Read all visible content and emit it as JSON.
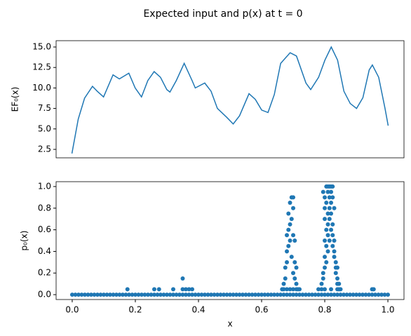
{
  "title": "Expected input and p(x) at t = 0",
  "chart_data": [
    {
      "type": "line",
      "ylabel": "EF₀(x)",
      "color": "#1f77b4",
      "x": [
        0,
        0.02,
        0.04,
        0.065,
        0.08,
        0.1,
        0.13,
        0.15,
        0.18,
        0.2,
        0.22,
        0.24,
        0.26,
        0.28,
        0.3,
        0.31,
        0.33,
        0.355,
        0.38,
        0.39,
        0.42,
        0.44,
        0.46,
        0.49,
        0.51,
        0.53,
        0.56,
        0.58,
        0.6,
        0.62,
        0.64,
        0.66,
        0.69,
        0.71,
        0.74,
        0.755,
        0.78,
        0.8,
        0.82,
        0.84,
        0.86,
        0.88,
        0.9,
        0.92,
        0.94,
        0.95,
        0.97,
        0.99,
        1.0
      ],
      "values": [
        2.0,
        6.2,
        8.75,
        10.2,
        9.6,
        8.9,
        11.6,
        11.1,
        11.8,
        10.0,
        8.9,
        10.9,
        12.0,
        11.3,
        9.8,
        9.5,
        10.9,
        13.0,
        10.9,
        10.0,
        10.6,
        9.6,
        7.5,
        6.4,
        5.6,
        6.6,
        9.3,
        8.6,
        7.3,
        7.0,
        9.2,
        13.0,
        14.3,
        13.9,
        10.6,
        9.8,
        11.3,
        13.4,
        15.0,
        13.4,
        9.6,
        8.1,
        7.5,
        8.8,
        12.2,
        12.8,
        11.3,
        7.5,
        5.4
      ],
      "xlim": [
        -0.05,
        1.05
      ],
      "ylim": [
        1.47,
        15.77
      ],
      "yticks": [
        2.5,
        {
          "value": 5,
          "label": "5.0"
        },
        7.5,
        {
          "value": 10,
          "label": "10.0"
        },
        12.5,
        {
          "value": 15,
          "label": "15.0"
        }
      ]
    },
    {
      "type": "scatter",
      "ylabel": "p₀(x)",
      "xlabel": "x",
      "color": "#1f77b4",
      "x": [
        0,
        0.01,
        0.02,
        0.03,
        0.04,
        0.05,
        0.06,
        0.07,
        0.08,
        0.09,
        0.1,
        0.11,
        0.12,
        0.13,
        0.14,
        0.15,
        0.16,
        0.17,
        0.18,
        0.19,
        0.2,
        0.21,
        0.22,
        0.23,
        0.24,
        0.25,
        0.26,
        0.27,
        0.28,
        0.29,
        0.3,
        0.31,
        0.32,
        0.33,
        0.34,
        0.35,
        0.36,
        0.37,
        0.38,
        0.39,
        0.4,
        0.41,
        0.42,
        0.43,
        0.44,
        0.45,
        0.46,
        0.47,
        0.48,
        0.49,
        0.5,
        0.51,
        0.52,
        0.53,
        0.54,
        0.55,
        0.56,
        0.57,
        0.58,
        0.59,
        0.6,
        0.61,
        0.62,
        0.63,
        0.64,
        0.65,
        0.66,
        0.67,
        0.68,
        0.69,
        0.7,
        0.71,
        0.72,
        0.73,
        0.74,
        0.75,
        0.76,
        0.77,
        0.78,
        0.79,
        0.8,
        0.81,
        0.82,
        0.83,
        0.84,
        0.85,
        0.86,
        0.87,
        0.88,
        0.89,
        0.9,
        0.91,
        0.92,
        0.93,
        0.94,
        0.95,
        0.96,
        0.97,
        0.98,
        0.99,
        1.0,
        0.175,
        0.26,
        0.275,
        0.32,
        0.35,
        0.35,
        0.36,
        0.37,
        0.38,
        0.665,
        0.67,
        0.67,
        0.675,
        0.675,
        0.68,
        0.68,
        0.68,
        0.68,
        0.685,
        0.685,
        0.685,
        0.69,
        0.69,
        0.69,
        0.69,
        0.695,
        0.695,
        0.695,
        0.7,
        0.7,
        0.7,
        0.7,
        0.7,
        0.705,
        0.705,
        0.705,
        0.71,
        0.71,
        0.71,
        0.715,
        0.72,
        0.78,
        0.79,
        0.79,
        0.795,
        0.795,
        0.795,
        0.8,
        0.8,
        0.8,
        0.8,
        0.8,
        0.8,
        0.8,
        0.805,
        0.805,
        0.805,
        0.805,
        0.805,
        0.81,
        0.81,
        0.81,
        0.81,
        0.81,
        0.81,
        0.815,
        0.815,
        0.815,
        0.815,
        0.815,
        0.82,
        0.82,
        0.82,
        0.82,
        0.82,
        0.82,
        0.825,
        0.825,
        0.825,
        0.825,
        0.825,
        0.83,
        0.83,
        0.83,
        0.83,
        0.835,
        0.835,
        0.835,
        0.84,
        0.84,
        0.84,
        0.84,
        0.845,
        0.845,
        0.85,
        0.95,
        0.955
      ],
      "values": [
        0,
        0,
        0,
        0,
        0,
        0,
        0,
        0,
        0,
        0,
        0,
        0,
        0,
        0,
        0,
        0,
        0,
        0,
        0,
        0,
        0,
        0,
        0,
        0,
        0,
        0,
        0,
        0,
        0,
        0,
        0,
        0,
        0,
        0,
        0,
        0,
        0,
        0,
        0,
        0,
        0,
        0,
        0,
        0,
        0,
        0,
        0,
        0,
        0,
        0,
        0,
        0,
        0,
        0,
        0,
        0,
        0,
        0,
        0,
        0,
        0,
        0,
        0,
        0,
        0,
        0,
        0,
        0,
        0,
        0,
        0,
        0,
        0,
        0,
        0,
        0,
        0,
        0,
        0,
        0,
        0,
        0,
        0,
        0,
        0,
        0,
        0,
        0,
        0,
        0,
        0,
        0,
        0,
        0,
        0,
        0,
        0,
        0,
        0,
        0,
        0,
        0.05,
        0.05,
        0.05,
        0.05,
        0.05,
        0.15,
        0.05,
        0.05,
        0.05,
        0.05,
        0.05,
        0.1,
        0.15,
        0.25,
        0.05,
        0.3,
        0.4,
        0.55,
        0.45,
        0.6,
        0.75,
        0.05,
        0.5,
        0.65,
        0.85,
        0.9,
        0.7,
        0.35,
        0.05,
        0.9,
        0.8,
        0.55,
        0.2,
        0.5,
        0.3,
        0.15,
        0.05,
        0.25,
        0.1,
        0.05,
        0.05,
        0.05,
        0.05,
        0.1,
        0.15,
        0.2,
        0.95,
        0.05,
        0.25,
        0.35,
        0.5,
        0.7,
        0.8,
        0.9,
        0.3,
        0.45,
        0.6,
        0.85,
        1.0,
        0.4,
        0.55,
        0.65,
        0.75,
        0.95,
        1.0,
        0.5,
        0.7,
        0.8,
        0.9,
        1.0,
        0.05,
        0.6,
        0.75,
        0.85,
        0.95,
        1.0,
        0.45,
        0.55,
        0.65,
        0.9,
        1.0,
        0.35,
        0.4,
        0.5,
        0.8,
        0.2,
        0.25,
        0.3,
        0.05,
        0.1,
        0.15,
        0.25,
        0.05,
        0.1,
        0.05,
        0.05,
        0.05
      ],
      "xlim": [
        -0.051,
        1.051
      ],
      "ylim": [
        -0.045,
        1.045
      ],
      "xticks": [
        {
          "value": 0,
          "label": "0.0"
        },
        0.2,
        0.4,
        0.6,
        0.8,
        {
          "value": 1,
          "label": "1.0"
        }
      ],
      "yticks": [
        {
          "value": 0,
          "label": "0.0"
        },
        0.2,
        0.4,
        0.6,
        0.8,
        {
          "value": 1,
          "label": "1.0"
        }
      ]
    }
  ]
}
